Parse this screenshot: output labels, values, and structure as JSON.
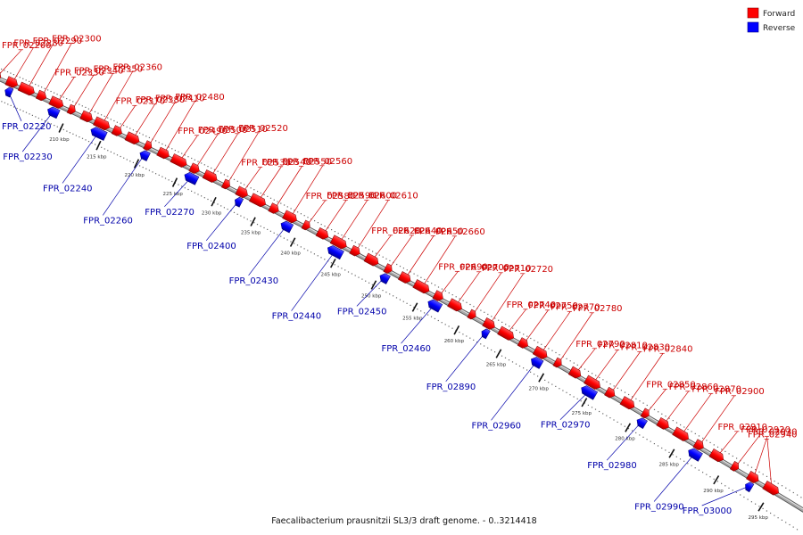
{
  "caption": "Faecalibacterium prausnitzii SL3/3 draft genome. - 0..3214418",
  "legend": [
    {
      "label": "Forward",
      "color": "#ff0000"
    },
    {
      "label": "Reverse",
      "color": "#0000ff"
    }
  ],
  "colors": {
    "forward_text": "#cc0000",
    "reverse_text": "#0000aa",
    "backbone": "#9a9a9a"
  },
  "ticks": [
    {
      "label": "210 kbp",
      "pos": 210
    },
    {
      "label": "215 kbp",
      "pos": 215
    },
    {
      "label": "220 kbp",
      "pos": 220
    },
    {
      "label": "225 kbp",
      "pos": 225
    },
    {
      "label": "230 kbp",
      "pos": 230
    },
    {
      "label": "235 kbp",
      "pos": 235
    },
    {
      "label": "240 kbp",
      "pos": 240
    },
    {
      "label": "245 kbp",
      "pos": 245
    },
    {
      "label": "250 kbp",
      "pos": 250
    },
    {
      "label": "255 kbp",
      "pos": 255
    },
    {
      "label": "260 kbp",
      "pos": 260
    },
    {
      "label": "265 kbp",
      "pos": 265
    },
    {
      "label": "270 kbp",
      "pos": 270
    },
    {
      "label": "275 kbp",
      "pos": 275
    },
    {
      "label": "280 kbp",
      "pos": 280
    },
    {
      "label": "285 kbp",
      "pos": 285
    },
    {
      "label": "290 kbp",
      "pos": 290
    },
    {
      "label": "295 kbp",
      "pos": 295
    }
  ],
  "genes": [
    {
      "label": "FPR_02200",
      "strand": "forward"
    },
    {
      "label": "FPR_02220",
      "strand": "reverse"
    },
    {
      "label": "FPR_02230",
      "strand": "reverse"
    },
    {
      "label": "FPR_02240",
      "strand": "reverse"
    },
    {
      "label": "FPR_02260",
      "strand": "reverse"
    },
    {
      "label": "FPR_02270",
      "strand": "reverse"
    },
    {
      "label": "FPR_02280",
      "strand": "forward"
    },
    {
      "label": "FPR_02290",
      "strand": "forward"
    },
    {
      "label": "FPR_02300",
      "strand": "forward"
    },
    {
      "label": "FPR_02330",
      "strand": "forward"
    },
    {
      "label": "FPR_02340",
      "strand": "forward"
    },
    {
      "label": "FPR_02350",
      "strand": "forward"
    },
    {
      "label": "FPR_02360",
      "strand": "forward"
    },
    {
      "label": "FPR_02370",
      "strand": "forward"
    },
    {
      "label": "FPR_02380",
      "strand": "forward"
    },
    {
      "label": "FPR_02400",
      "strand": "reverse"
    },
    {
      "label": "FPR_02410",
      "strand": "forward"
    },
    {
      "label": "FPR_02430",
      "strand": "reverse"
    },
    {
      "label": "FPR_02440",
      "strand": "reverse"
    },
    {
      "label": "FPR_02450",
      "strand": "reverse"
    },
    {
      "label": "FPR_02460",
      "strand": "reverse"
    },
    {
      "label": "FPR_02480",
      "strand": "forward"
    },
    {
      "label": "FPR_02490",
      "strand": "forward"
    },
    {
      "label": "FPR_02500",
      "strand": "forward"
    },
    {
      "label": "FPR_02510",
      "strand": "forward"
    },
    {
      "label": "FPR_02520",
      "strand": "forward"
    },
    {
      "label": "FPR_02530",
      "strand": "forward"
    },
    {
      "label": "FPR_02540",
      "strand": "forward"
    },
    {
      "label": "FPR_02550",
      "strand": "forward"
    },
    {
      "label": "FPR_02560",
      "strand": "forward"
    },
    {
      "label": "FPR_02580",
      "strand": "forward"
    },
    {
      "label": "FPR_02590",
      "strand": "forward"
    },
    {
      "label": "FPR_02600",
      "strand": "forward"
    },
    {
      "label": "FPR_02610",
      "strand": "forward"
    },
    {
      "label": "FPR_02620",
      "strand": "forward"
    },
    {
      "label": "FPR_02640",
      "strand": "forward"
    },
    {
      "label": "FPR_02650",
      "strand": "forward"
    },
    {
      "label": "FPR_02660",
      "strand": "forward"
    },
    {
      "label": "FPR_02690",
      "strand": "forward"
    },
    {
      "label": "FPR_02700",
      "strand": "forward"
    },
    {
      "label": "FPR_02710",
      "strand": "forward"
    },
    {
      "label": "FPR_02720",
      "strand": "forward"
    },
    {
      "label": "FPR_02740",
      "strand": "forward"
    },
    {
      "label": "FPR_02750",
      "strand": "forward"
    },
    {
      "label": "FPR_02770",
      "strand": "forward"
    },
    {
      "label": "FPR_02780",
      "strand": "forward"
    },
    {
      "label": "FPR_02790",
      "strand": "forward"
    },
    {
      "label": "FPR_02810",
      "strand": "forward"
    },
    {
      "label": "FPR_02830",
      "strand": "forward"
    },
    {
      "label": "FPR_02840",
      "strand": "forward"
    },
    {
      "label": "FPR_02850",
      "strand": "forward"
    },
    {
      "label": "FPR_02860",
      "strand": "forward"
    },
    {
      "label": "FPR_02870",
      "strand": "forward"
    },
    {
      "label": "FPR_02890",
      "strand": "reverse"
    },
    {
      "label": "FPR_02900",
      "strand": "forward"
    },
    {
      "label": "FPR_02910",
      "strand": "forward"
    },
    {
      "label": "FPR_02920",
      "strand": "forward"
    },
    {
      "label": "FPR_02930",
      "strand": "forward"
    },
    {
      "label": "FPR_02940",
      "strand": "forward"
    },
    {
      "label": "FPR_02960",
      "strand": "reverse"
    },
    {
      "label": "FPR_02970",
      "strand": "reverse"
    },
    {
      "label": "FPR_02980",
      "strand": "reverse"
    },
    {
      "label": "FPR_02990",
      "strand": "reverse"
    },
    {
      "label": "FPR_03000",
      "strand": "reverse"
    }
  ]
}
